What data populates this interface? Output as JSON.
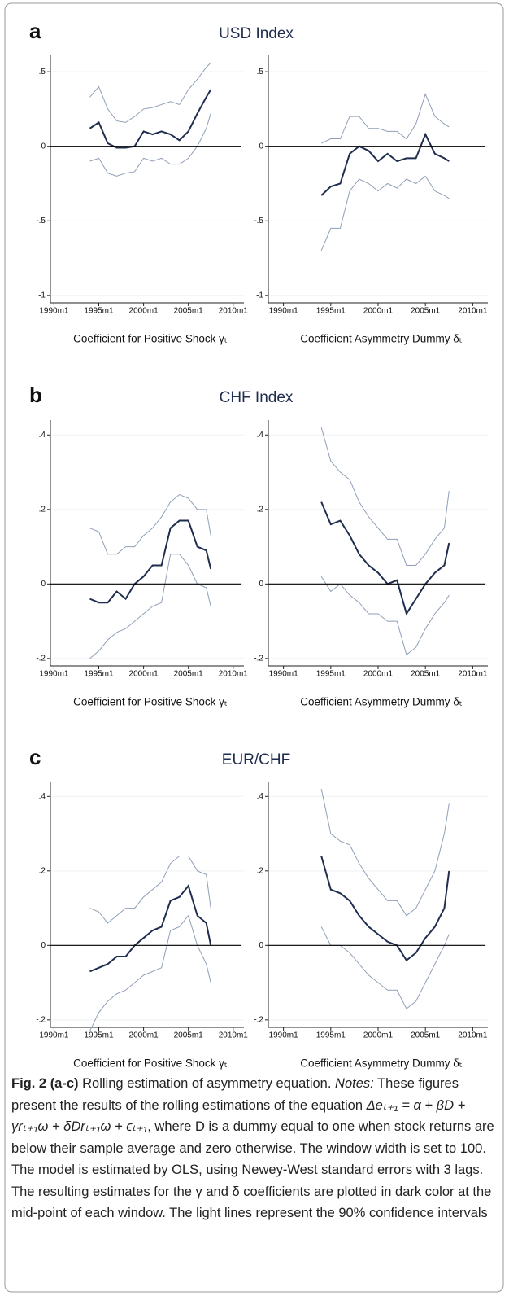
{
  "panels": [
    {
      "letter": "a",
      "title": "USD Index"
    },
    {
      "letter": "b",
      "title": "CHF Index"
    },
    {
      "letter": "c",
      "title": "EUR/CHF"
    }
  ],
  "chart_data": [
    {
      "type": "line",
      "x_label": "Coefficient for Positive Shock γₜ",
      "x": [
        1994,
        1995,
        1996,
        1997,
        1998,
        1999,
        2000,
        2001,
        2002,
        2003,
        2004,
        2005,
        2006,
        2007,
        2007.5
      ],
      "series": [
        {
          "color": "#8e9fb7",
          "values": [
            0.33,
            0.4,
            0.25,
            0.17,
            0.16,
            0.2,
            0.25,
            0.26,
            0.28,
            0.3,
            0.28,
            0.38,
            0.45,
            0.53,
            0.56
          ]
        },
        {
          "color": "#8e9fb7",
          "values": [
            -0.1,
            -0.08,
            -0.18,
            -0.2,
            -0.18,
            -0.17,
            -0.08,
            -0.1,
            -0.08,
            -0.12,
            -0.12,
            -0.08,
            0.0,
            0.12,
            0.22
          ]
        },
        {
          "color": "#1f2d4e",
          "values": [
            0.12,
            0.16,
            0.02,
            -0.01,
            -0.01,
            0.0,
            0.1,
            0.08,
            0.1,
            0.08,
            0.04,
            0.1,
            0.22,
            0.33,
            0.38
          ]
        }
      ],
      "xlim": [
        1989.6,
        2011.2
      ],
      "xticks": [
        {
          "value": 1990,
          "label": "1990m1"
        },
        {
          "value": 1995,
          "label": "1995m1"
        },
        {
          "value": 2000,
          "label": "2000m1"
        },
        {
          "value": 2005,
          "label": "2005m1"
        },
        {
          "value": 2010,
          "label": "2010m1"
        }
      ],
      "ylim": [
        -1.05,
        0.61
      ],
      "yticks": [
        {
          "value": 0.5,
          "label": ".5"
        },
        0,
        {
          "value": -0.5,
          "label": "-.5"
        },
        -1
      ],
      "hline": 0,
      "grid": true
    },
    {
      "type": "line",
      "x_label": "Coefficient Asymmetry Dummy δₜ",
      "x": [
        1994,
        1995,
        1996,
        1997,
        1998,
        1999,
        2000,
        2001,
        2002,
        2003,
        2004,
        2005,
        2006,
        2007,
        2007.5
      ],
      "series": [
        {
          "color": "#8e9fb7",
          "values": [
            0.02,
            0.05,
            0.05,
            0.2,
            0.2,
            0.12,
            0.12,
            0.1,
            0.1,
            0.05,
            0.15,
            0.35,
            0.2,
            0.15,
            0.13
          ]
        },
        {
          "color": "#8e9fb7",
          "values": [
            -0.7,
            -0.55,
            -0.55,
            -0.3,
            -0.22,
            -0.25,
            -0.3,
            -0.25,
            -0.28,
            -0.22,
            -0.25,
            -0.2,
            -0.3,
            -0.33,
            -0.35
          ]
        },
        {
          "color": "#1f2d4e",
          "values": [
            -0.33,
            -0.27,
            -0.25,
            -0.05,
            0.0,
            -0.03,
            -0.1,
            -0.05,
            -0.1,
            -0.08,
            -0.08,
            0.08,
            -0.05,
            -0.08,
            -0.1
          ]
        }
      ],
      "xlim": [
        1988.4,
        2011.6
      ],
      "xticks": [
        {
          "value": 1990,
          "label": "1990m1"
        },
        {
          "value": 1995,
          "label": "1995m1"
        },
        {
          "value": 2000,
          "label": "2000m1"
        },
        {
          "value": 2005,
          "label": "2005m1"
        },
        {
          "value": 2010,
          "label": "2010m1"
        }
      ],
      "ylim": [
        -1.05,
        0.61
      ],
      "yticks": [
        {
          "value": 0.5,
          "label": ".5"
        },
        0,
        {
          "value": -0.5,
          "label": "-.5"
        },
        -1
      ],
      "hline": 0,
      "grid": true
    },
    {
      "type": "line",
      "x_label": "Coefficient for Positive Shock γₜ",
      "x": [
        1994,
        1995,
        1996,
        1997,
        1998,
        1999,
        2000,
        2001,
        2002,
        2003,
        2004,
        2005,
        2006,
        2007,
        2007.5
      ],
      "series": [
        {
          "color": "#8e9fb7",
          "values": [
            0.15,
            0.14,
            0.08,
            0.08,
            0.1,
            0.1,
            0.13,
            0.15,
            0.18,
            0.22,
            0.24,
            0.23,
            0.2,
            0.2,
            0.13
          ]
        },
        {
          "color": "#8e9fb7",
          "values": [
            -0.2,
            -0.18,
            -0.15,
            -0.13,
            -0.12,
            -0.1,
            -0.08,
            -0.06,
            -0.05,
            0.08,
            0.08,
            0.05,
            0.0,
            -0.01,
            -0.06
          ]
        },
        {
          "color": "#1f2d4e",
          "values": [
            -0.04,
            -0.05,
            -0.05,
            -0.02,
            -0.04,
            0.0,
            0.02,
            0.05,
            0.05,
            0.15,
            0.17,
            0.17,
            0.1,
            0.09,
            0.04
          ]
        }
      ],
      "xlim": [
        1989.6,
        2011.2
      ],
      "xticks": [
        {
          "value": 1990,
          "label": "1990m1"
        },
        {
          "value": 1995,
          "label": "1995m1"
        },
        {
          "value": 2000,
          "label": "2000m1"
        },
        {
          "value": 2005,
          "label": "2005m1"
        },
        {
          "value": 2010,
          "label": "2010m1"
        }
      ],
      "ylim": [
        -0.22,
        0.44
      ],
      "yticks": [
        {
          "value": 0.4,
          "label": ".4"
        },
        {
          "value": 0.2,
          "label": ".2"
        },
        0,
        {
          "value": -0.2,
          "label": "-.2"
        }
      ],
      "hline": 0,
      "grid": true
    },
    {
      "type": "line",
      "x_label": "Coefficient Asymmetry Dummy δₜ",
      "x": [
        1994,
        1995,
        1996,
        1997,
        1998,
        1999,
        2000,
        2001,
        2002,
        2003,
        2004,
        2005,
        2006,
        2007,
        2007.5
      ],
      "series": [
        {
          "color": "#8e9fb7",
          "values": [
            0.42,
            0.33,
            0.3,
            0.28,
            0.22,
            0.18,
            0.15,
            0.12,
            0.12,
            0.05,
            0.05,
            0.08,
            0.12,
            0.15,
            0.25
          ]
        },
        {
          "color": "#8e9fb7",
          "values": [
            0.02,
            -0.02,
            0.0,
            -0.03,
            -0.05,
            -0.08,
            -0.08,
            -0.1,
            -0.1,
            -0.19,
            -0.17,
            -0.12,
            -0.08,
            -0.05,
            -0.03
          ]
        },
        {
          "color": "#1f2d4e",
          "values": [
            0.22,
            0.16,
            0.17,
            0.13,
            0.08,
            0.05,
            0.03,
            0.0,
            0.01,
            -0.08,
            -0.04,
            0.0,
            0.03,
            0.05,
            0.11
          ]
        }
      ],
      "xlim": [
        1988.4,
        2011.6
      ],
      "xticks": [
        {
          "value": 1990,
          "label": "1990m1"
        },
        {
          "value": 1995,
          "label": "1995m1"
        },
        {
          "value": 2000,
          "label": "2000m1"
        },
        {
          "value": 2005,
          "label": "2005m1"
        },
        {
          "value": 2010,
          "label": "2010m1"
        }
      ],
      "ylim": [
        -0.22,
        0.44
      ],
      "yticks": [
        {
          "value": 0.4,
          "label": ".4"
        },
        {
          "value": 0.2,
          "label": ".2"
        },
        0,
        {
          "value": -0.2,
          "label": "-.2"
        }
      ],
      "hline": 0,
      "grid": true
    },
    {
      "type": "line",
      "x_label": "Coefficient for Positive Shock γₜ",
      "x": [
        1994,
        1995,
        1996,
        1997,
        1998,
        1999,
        2000,
        2001,
        2002,
        2003,
        2004,
        2005,
        2006,
        2007,
        2007.5
      ],
      "series": [
        {
          "color": "#8e9fb7",
          "values": [
            0.1,
            0.09,
            0.06,
            0.08,
            0.1,
            0.1,
            0.13,
            0.15,
            0.17,
            0.22,
            0.24,
            0.24,
            0.2,
            0.19,
            0.1
          ]
        },
        {
          "color": "#8e9fb7",
          "values": [
            -0.23,
            -0.18,
            -0.15,
            -0.13,
            -0.12,
            -0.1,
            -0.08,
            -0.07,
            -0.06,
            0.04,
            0.05,
            0.08,
            0.0,
            -0.05,
            -0.1
          ]
        },
        {
          "color": "#1f2d4e",
          "values": [
            -0.07,
            -0.06,
            -0.05,
            -0.03,
            -0.03,
            0.0,
            0.02,
            0.04,
            0.05,
            0.12,
            0.13,
            0.16,
            0.08,
            0.06,
            0.0
          ]
        }
      ],
      "xlim": [
        1989.6,
        2011.2
      ],
      "xticks": [
        {
          "value": 1990,
          "label": "1990m1"
        },
        {
          "value": 1995,
          "label": "1995m1"
        },
        {
          "value": 2000,
          "label": "2000m1"
        },
        {
          "value": 2005,
          "label": "2005m1"
        },
        {
          "value": 2010,
          "label": "2010m1"
        }
      ],
      "ylim": [
        -0.22,
        0.44
      ],
      "yticks": [
        {
          "value": 0.4,
          "label": ".4"
        },
        {
          "value": 0.2,
          "label": ".2"
        },
        0,
        {
          "value": -0.2,
          "label": "-.2"
        }
      ],
      "hline": 0,
      "grid": true
    },
    {
      "type": "line",
      "x_label": "Coefficient Asymmetry Dummy δₜ",
      "x": [
        1994,
        1995,
        1996,
        1997,
        1998,
        1999,
        2000,
        2001,
        2002,
        2003,
        2004,
        2005,
        2006,
        2007,
        2007.5
      ],
      "series": [
        {
          "color": "#8e9fb7",
          "values": [
            0.42,
            0.3,
            0.28,
            0.27,
            0.22,
            0.18,
            0.15,
            0.12,
            0.12,
            0.08,
            0.1,
            0.15,
            0.2,
            0.3,
            0.38
          ]
        },
        {
          "color": "#8e9fb7",
          "values": [
            0.05,
            0.0,
            0.0,
            -0.02,
            -0.05,
            -0.08,
            -0.1,
            -0.12,
            -0.12,
            -0.17,
            -0.15,
            -0.1,
            -0.05,
            0.0,
            0.03
          ]
        },
        {
          "color": "#1f2d4e",
          "values": [
            0.24,
            0.15,
            0.14,
            0.12,
            0.08,
            0.05,
            0.03,
            0.01,
            0.0,
            -0.04,
            -0.02,
            0.02,
            0.05,
            0.1,
            0.2
          ]
        }
      ],
      "xlim": [
        1988.4,
        2011.6
      ],
      "xticks": [
        {
          "value": 1990,
          "label": "1990m1"
        },
        {
          "value": 1995,
          "label": "1995m1"
        },
        {
          "value": 2000,
          "label": "2000m1"
        },
        {
          "value": 2005,
          "label": "2005m1"
        },
        {
          "value": 2010,
          "label": "2010m1"
        }
      ],
      "ylim": [
        -0.22,
        0.44
      ],
      "yticks": [
        {
          "value": 0.4,
          "label": ".4"
        },
        {
          "value": 0.2,
          "label": ".2"
        },
        0,
        {
          "value": -0.2,
          "label": "-.2"
        }
      ],
      "hline": 0,
      "grid": true
    }
  ],
  "caption": {
    "label": "Fig. 2",
    "panels": "(a-c)",
    "title": "Rolling estimation of asymmetry equation.",
    "notes_label": "Notes:",
    "text1": "These figures present the results of the rolling estimations of the equation",
    "equation": "Δeₜ₊₁ = α + βD + γrₜ₊₁ω + δDrₜ₊₁ω + ϵₜ₊₁",
    "text2": ", where D is a dummy equal to one when stock returns are below their sample average and zero otherwise. The window width is set to 100. The model is estimated by OLS, using Newey-West standard errors with 3 lags. The resulting estimates for the γ and δ coefficients are plotted in dark color at the mid-point of each window. The light lines represent the 90% confidence intervals"
  }
}
